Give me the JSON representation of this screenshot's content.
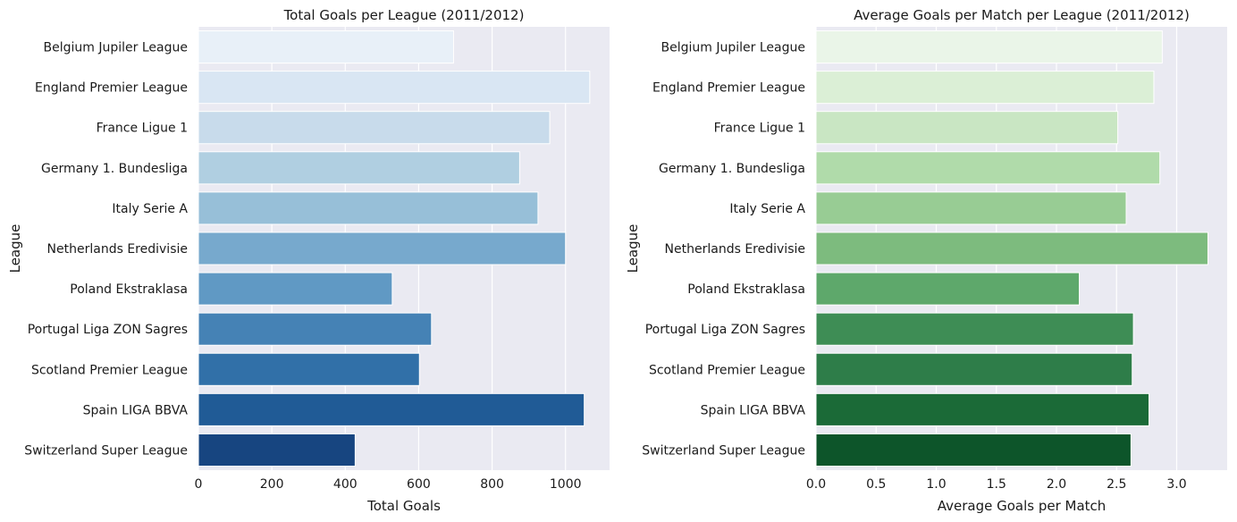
{
  "chart_data": [
    {
      "type": "bar",
      "orientation": "horizontal",
      "title": "Total Goals per League (2011/2012)",
      "xlabel": "Total Goals",
      "ylabel": "League",
      "categories": [
        "Belgium Jupiler League",
        "England Premier League",
        "France Ligue 1",
        "Germany 1. Bundesliga",
        "Italy Serie A",
        "Netherlands Eredivisie",
        "Poland Ekstraklasa",
        "Portugal Liga ZON Sagres",
        "Scotland Premier League",
        "Spain LIGA BBVA",
        "Switzerland Super League"
      ],
      "values": [
        695,
        1066,
        957,
        875,
        925,
        1000,
        528,
        635,
        602,
        1051,
        427
      ],
      "xlim": [
        0,
        1120
      ],
      "xticks": [
        0,
        200,
        400,
        600,
        800,
        1000
      ],
      "colors": [
        "#e8f0f8",
        "#d9e6f3",
        "#c8dbeb",
        "#b0cfe1",
        "#97bfd8",
        "#77a9cd",
        "#6099c4",
        "#4582b5",
        "#3170a8",
        "#205b96",
        "#174580"
      ],
      "grid": true,
      "legend": "none"
    },
    {
      "type": "bar",
      "orientation": "horizontal",
      "title": "Average Goals per Match per League (2011/2012)",
      "xlabel": "Average Goals per Match",
      "ylabel": "League",
      "categories": [
        "Belgium Jupiler League",
        "England Premier League",
        "France Ligue 1",
        "Germany 1. Bundesliga",
        "Italy Serie A",
        "Netherlands Eredivisie",
        "Poland Ekstraklasa",
        "Portugal Liga ZON Sagres",
        "Scotland Premier League",
        "Spain LIGA BBVA",
        "Switzerland Super League"
      ],
      "values": [
        2.88,
        2.81,
        2.51,
        2.86,
        2.58,
        3.26,
        2.19,
        2.64,
        2.63,
        2.77,
        2.62
      ],
      "xlim": [
        0,
        3.42
      ],
      "xticks": [
        0.0,
        0.5,
        1.0,
        1.5,
        2.0,
        2.5,
        3.0
      ],
      "xtick_labels": [
        "0.0",
        "0.5",
        "1.0",
        "1.5",
        "2.0",
        "2.5",
        "3.0"
      ],
      "colors": [
        "#eaf5e8",
        "#dbefd6",
        "#c9e6c3",
        "#b0dbaa",
        "#98cc94",
        "#7dbb7e",
        "#5ea86b",
        "#3e8d55",
        "#2e7d49",
        "#1b6a37",
        "#0d552a"
      ],
      "grid": true,
      "legend": "none"
    }
  ]
}
